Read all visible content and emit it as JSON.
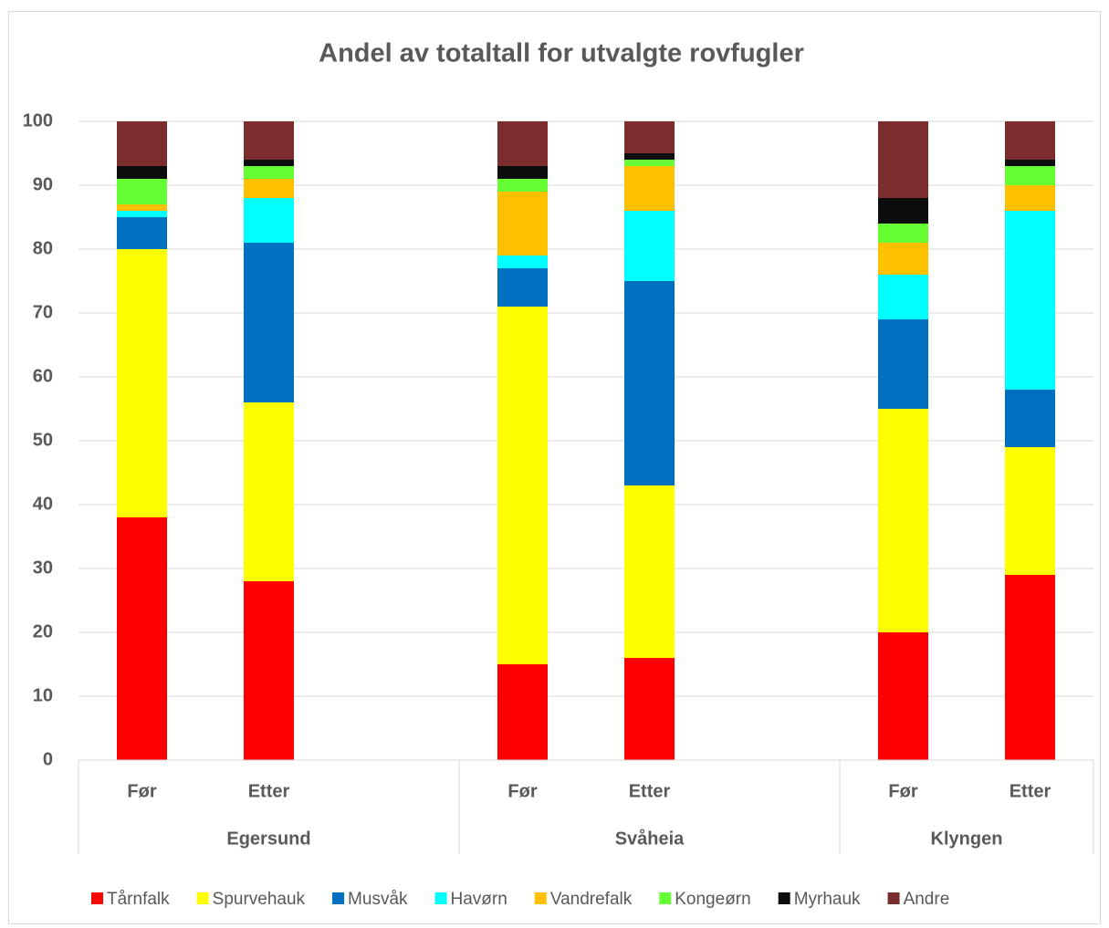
{
  "chart_data": {
    "type": "stacked_bar",
    "title": "Andel av totaltall for utvalgte rovfugler",
    "categories": [
      "Før",
      "Etter",
      null,
      "Før",
      "Etter",
      null,
      "Før",
      "Etter"
    ],
    "groups": [
      "Egersund",
      "Svåheia",
      "Klyngen"
    ],
    "ylim": [
      0,
      100
    ],
    "yticks": [
      0,
      10,
      20,
      30,
      40,
      50,
      60,
      70,
      80,
      90,
      100
    ],
    "grid": true,
    "legend": "bottom",
    "series": [
      {
        "name": "Tårnfalk",
        "color": "#ff0000",
        "values": [
          38,
          28,
          null,
          15,
          16,
          null,
          20,
          29
        ]
      },
      {
        "name": "Spurvehauk",
        "color": "#ffff00",
        "values": [
          42,
          28,
          null,
          56,
          27,
          null,
          35,
          20
        ]
      },
      {
        "name": "Musvåk",
        "color": "#0070c0",
        "values": [
          5,
          25,
          null,
          6,
          32,
          null,
          14,
          9
        ]
      },
      {
        "name": "Havørn",
        "color": "#00ffff",
        "values": [
          1,
          7,
          null,
          2,
          11,
          null,
          7,
          28
        ]
      },
      {
        "name": "Vandrefalk",
        "color": "#ffc000",
        "values": [
          1,
          3,
          null,
          10,
          7,
          null,
          5,
          4
        ]
      },
      {
        "name": "Kongeørn",
        "color": "#66ff33",
        "values": [
          4,
          2,
          null,
          2,
          1,
          null,
          3,
          3
        ]
      },
      {
        "name": "Myrhauk",
        "color": "#0d0d0d",
        "values": [
          2,
          1,
          null,
          2,
          1,
          null,
          4,
          1
        ]
      },
      {
        "name": "Andre",
        "color": "#7b2c2c",
        "values": [
          7,
          6,
          null,
          7,
          5,
          null,
          12,
          6
        ]
      }
    ]
  }
}
